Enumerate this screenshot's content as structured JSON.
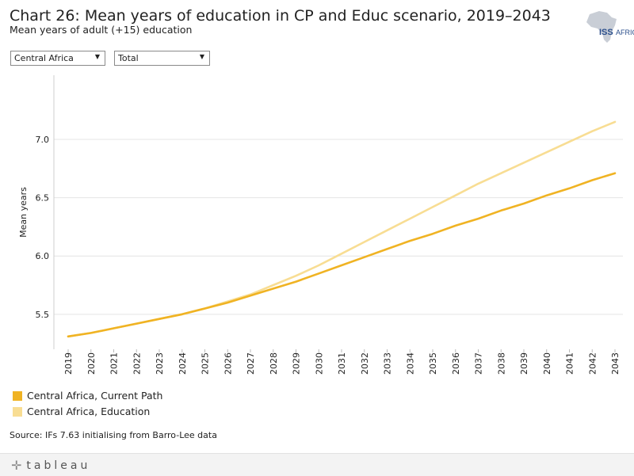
{
  "header": {
    "title": "Chart 26: Mean years of education in CP and Educ scenario, 2019–2043",
    "subtitle": "Mean years of adult (+15) education",
    "logo_text": "ISS AFRICA"
  },
  "filters": {
    "region": "Central Africa",
    "group": "Total"
  },
  "chart_data": {
    "type": "line",
    "title": "Chart 26: Mean years of education in CP and Educ scenario, 2019–2043",
    "ylabel": "Mean years",
    "xlabel": "",
    "ylim": [
      5.2,
      7.55
    ],
    "y_ticks": [
      5.5,
      6.0,
      6.5,
      7.0
    ],
    "y_tick_labels": [
      "5.5",
      "6.0",
      "6.5",
      "7.0"
    ],
    "x": [
      "2019",
      "2020",
      "2021",
      "2022",
      "2023",
      "2024",
      "2025",
      "2026",
      "2027",
      "2028",
      "2029",
      "2030",
      "2031",
      "2032",
      "2033",
      "2034",
      "2035",
      "2036",
      "2037",
      "2038",
      "2039",
      "2040",
      "2041",
      "2042",
      "2043"
    ],
    "grid": true,
    "legend_position": "bottom-left",
    "series": [
      {
        "name": "Central Africa, Current Path",
        "color": "#f0b323",
        "values": [
          5.31,
          5.34,
          5.38,
          5.42,
          5.46,
          5.5,
          5.55,
          5.6,
          5.66,
          5.72,
          5.78,
          5.85,
          5.92,
          5.99,
          6.06,
          6.13,
          6.19,
          6.26,
          6.32,
          6.39,
          6.45,
          6.52,
          6.58,
          6.65,
          6.71
        ]
      },
      {
        "name": "Central Africa, Education",
        "color": "#f8dd93",
        "values": [
          5.31,
          5.34,
          5.38,
          5.42,
          5.46,
          5.5,
          5.55,
          5.61,
          5.67,
          5.75,
          5.83,
          5.92,
          6.02,
          6.12,
          6.22,
          6.32,
          6.42,
          6.52,
          6.62,
          6.71,
          6.8,
          6.89,
          6.98,
          7.07,
          7.15
        ]
      }
    ]
  },
  "source": "Source: IFs 7.63 initialising from Barro-Lee data",
  "footer": {
    "brand": "tableau"
  }
}
